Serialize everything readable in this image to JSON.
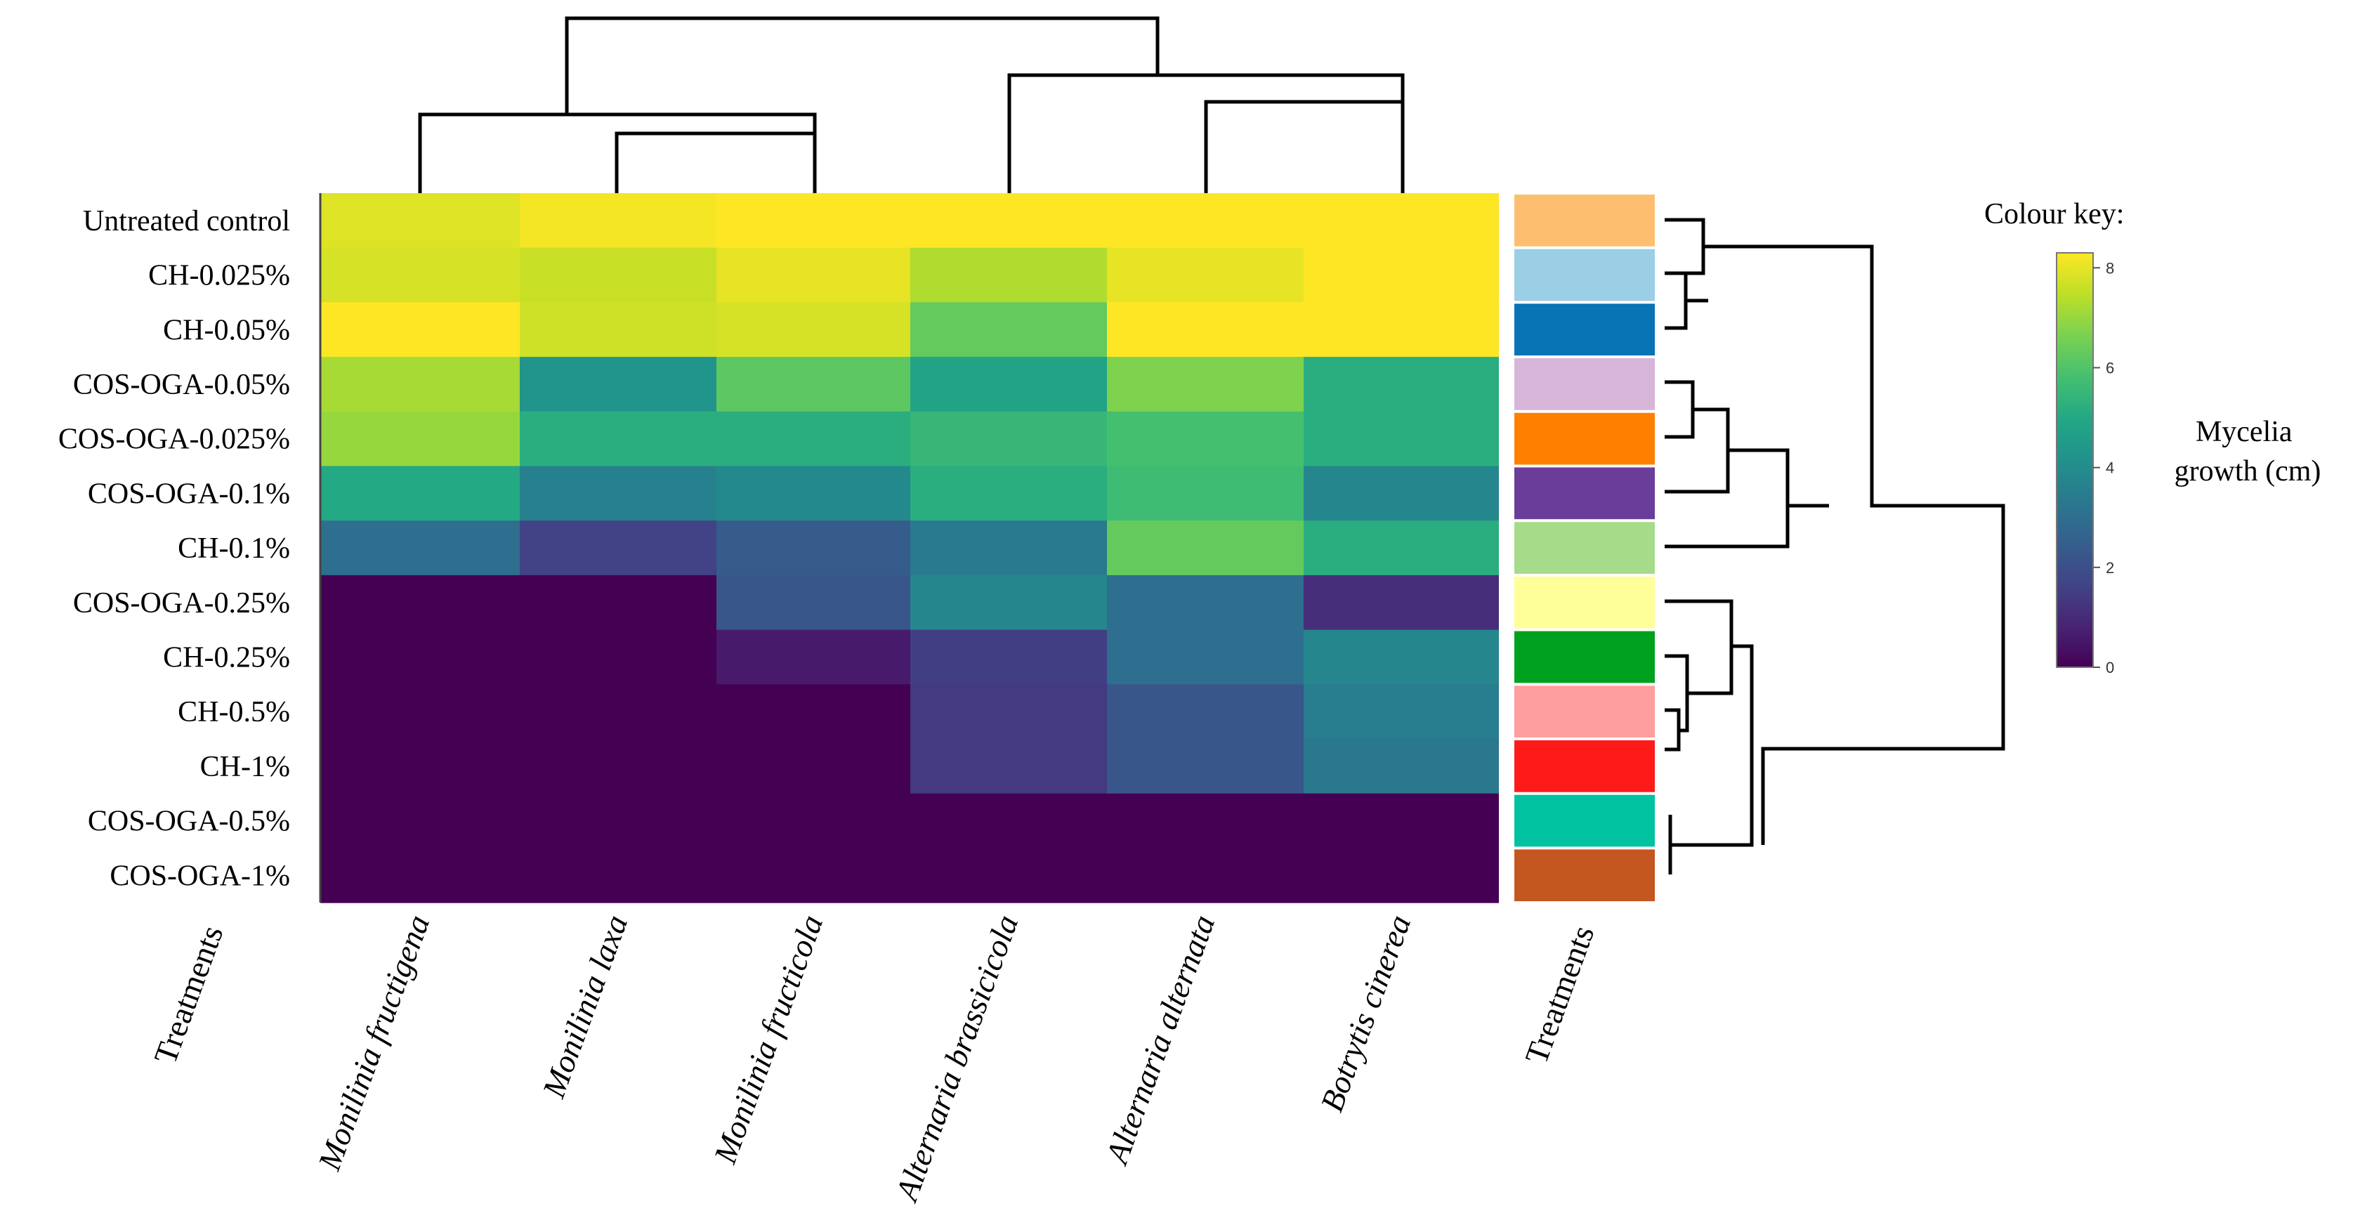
{
  "chart_data": {
    "type": "heatmap",
    "row_labels": [
      "Untreated control",
      "CH-0.025%",
      "CH-0.05%",
      "COS-OGA-0.05%",
      "COS-OGA-0.025%",
      "COS-OGA-0.1%",
      "CH-0.1%",
      "COS-OGA-0.25%",
      "CH-0.25%",
      "CH-0.5%",
      "CH-1%",
      "COS-OGA-0.5%",
      "COS-OGA-1%"
    ],
    "column_labels": [
      "Monilinia fructigena",
      "Monilinia laxa",
      "Monilinia fructicola",
      "Alternaria brassicicola",
      "Alternaria alternata",
      "Botrytis cinerea"
    ],
    "values": [
      [
        7.9,
        8.2,
        8.3,
        8.3,
        8.3,
        8.3
      ],
      [
        7.8,
        7.6,
        8.0,
        7.3,
        8.0,
        8.3
      ],
      [
        8.3,
        7.7,
        7.8,
        6.3,
        8.3,
        8.3
      ],
      [
        7.2,
        4.3,
        6.2,
        4.8,
        6.7,
        5.2
      ],
      [
        7.0,
        5.2,
        5.2,
        5.5,
        5.8,
        5.2
      ],
      [
        5.0,
        3.6,
        3.9,
        5.2,
        5.7,
        3.8
      ],
      [
        3.0,
        1.6,
        2.4,
        3.4,
        6.3,
        5.2
      ],
      [
        0.0,
        0.0,
        2.2,
        3.8,
        3.0,
        1.1
      ],
      [
        0.0,
        0.0,
        0.6,
        1.5,
        3.0,
        3.8
      ],
      [
        0.0,
        0.0,
        0.0,
        1.4,
        2.2,
        3.5
      ],
      [
        0.0,
        0.0,
        0.0,
        1.4,
        2.2,
        3.3
      ],
      [
        0.0,
        0.0,
        0.0,
        0.0,
        0.0,
        0.0
      ],
      [
        0.0,
        0.0,
        0.0,
        0.0,
        0.0,
        0.0
      ]
    ],
    "treatment_colors": [
      "#FDBF6F",
      "#9ACFE6",
      "#0873B5",
      "#D7B5D8",
      "#FF7F00",
      "#6A3D9A",
      "#A6DB8A",
      "#FFFF99",
      "#00A11E",
      "#FF9E9E",
      "#FF1A1A",
      "#00C2A0",
      "#C4561F"
    ],
    "xlabel_left": "Treatments",
    "xlabel_right": "Treatments",
    "colour_key": {
      "title": "Colour key:",
      "label": "Mycelia growth (cm)",
      "range": [
        0,
        8.3
      ],
      "ticks": [
        "0",
        "2",
        "4",
        "6",
        "8"
      ]
    }
  }
}
